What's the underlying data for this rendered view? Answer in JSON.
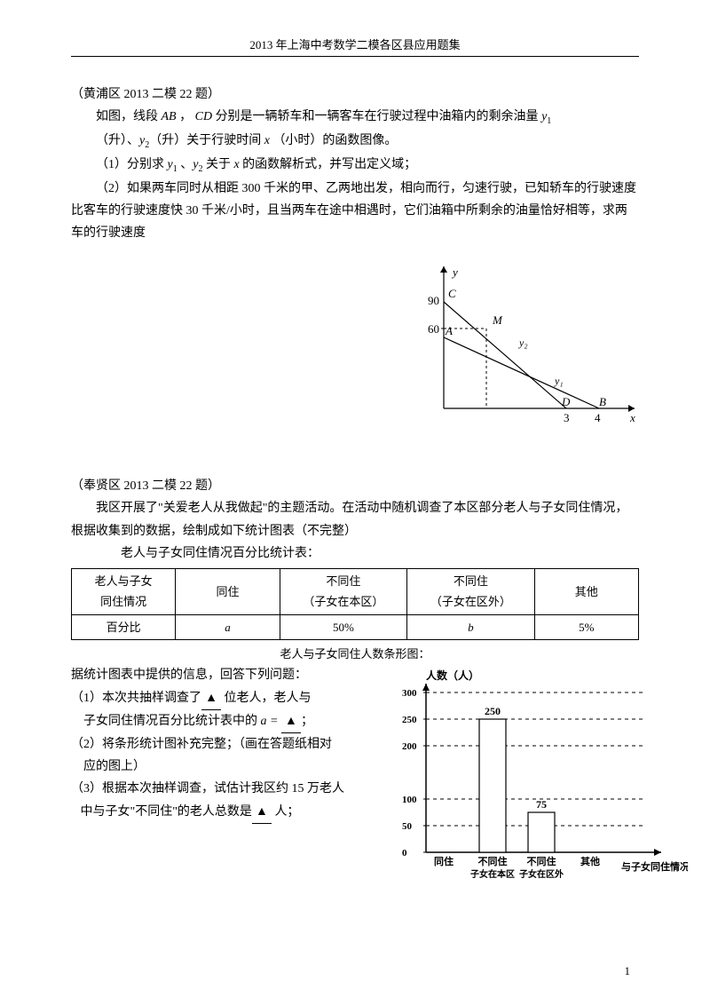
{
  "header": "2013 年上海中考数学二模各区县应用题集",
  "p1": {
    "title": "（黄浦区 2013 二模 22 题）",
    "l1a": "如图，线段 ",
    "AB": "AB",
    "l1b": " ， ",
    "CD": "CD",
    "l1c": " 分别是一辆轿车和一辆客车在行驶过程中油箱内的剩余油量 ",
    "y1": "y",
    "l2a": "（升）、",
    "y2": "y",
    "l2b": "（升）关于行驶时间 ",
    "x": "x",
    "l2c": " （小时）的函数图像。",
    "q1a": "（1）分别求 ",
    "q1b": " 、",
    "q1c": " 关于 ",
    "q1d": " 的函数解析式，并写出定义域；",
    "q2": "（2）如果两车同时从相距 300 千米的甲、乙两地出发，相向而行，匀速行驶，已知轿车的行驶速度比客车的行驶速度快 30 千米/小时，且当两车在途中相遇时，它们油箱中所剩余的油量恰好相等，求两车的行驶速度"
  },
  "chart1": {
    "y_ticks": [
      "90",
      "60"
    ],
    "x_ticks": [
      "3",
      "4"
    ],
    "y_label": "y",
    "x_label": "x",
    "points": {
      "C": "C",
      "M": "M",
      "A": "A",
      "D": "D",
      "B": "B"
    },
    "series_labels": {
      "y1": "y₁",
      "y2": "y₂"
    }
  },
  "p2": {
    "title": "（奉贤区 2013 二模 22 题）",
    "intro": "我区开展了\"关爱老人从我做起\"的主题活动。在活动中随机调查了本区部分老人与子女同住情况，根据收集到的数据，绘制成如下统计图表（不完整）",
    "table_title": "老人与子女同住情况百分比统计表：",
    "chart_title": "老人与子女同住人数条形图：",
    "q_lead": "据统计图表中提供的信息，回答下列问题：",
    "q1a": "（1）本次共抽样调查了",
    "q1b": "位老人，老人与",
    "q1c": "子女同住情况百分比统计表中的 ",
    "a_eq": "a = ",
    "q1d": "；",
    "q2a": "（2）将条形统计图补充完整；（画在答题纸相对",
    "q2b": "应的图上）",
    "q3a": "（3）根据本次抽样调查，试估计我区约 15 万老人",
    "q3b": "中与子女\"不同住\"的老人总数是",
    "q3c": "人；"
  },
  "table": {
    "h1": "老人与子女\n同住情况",
    "h2": "同住",
    "h3": "不同住\n（子女在本区）",
    "h4": "不同住\n（子女在区外）",
    "h5": "其他",
    "r1": "百分比",
    "c_a": "a",
    "c_50": "50%",
    "c_b": "b",
    "c_5": "5%"
  },
  "chart2": {
    "title": "人数（人）",
    "y_ticks_num": [
      300,
      250,
      200,
      100,
      50,
      0
    ],
    "y_ticks": [
      "300",
      "250",
      "200",
      "100",
      "50",
      "0"
    ],
    "bars": [
      {
        "label": "同住",
        "sub": "",
        "value": null
      },
      {
        "label": "不同住",
        "sub": "子女在本区",
        "value": 250
      },
      {
        "label": "不同住",
        "sub": "子女在区外",
        "value": 75
      },
      {
        "label": "其他",
        "sub": "",
        "value": null
      }
    ],
    "x_label": "与子女同住情况",
    "bar_color": "#ffffff",
    "bar_border": "#000000",
    "scale_max": 300
  },
  "pagenum": "1",
  "blank_mark": "▲"
}
